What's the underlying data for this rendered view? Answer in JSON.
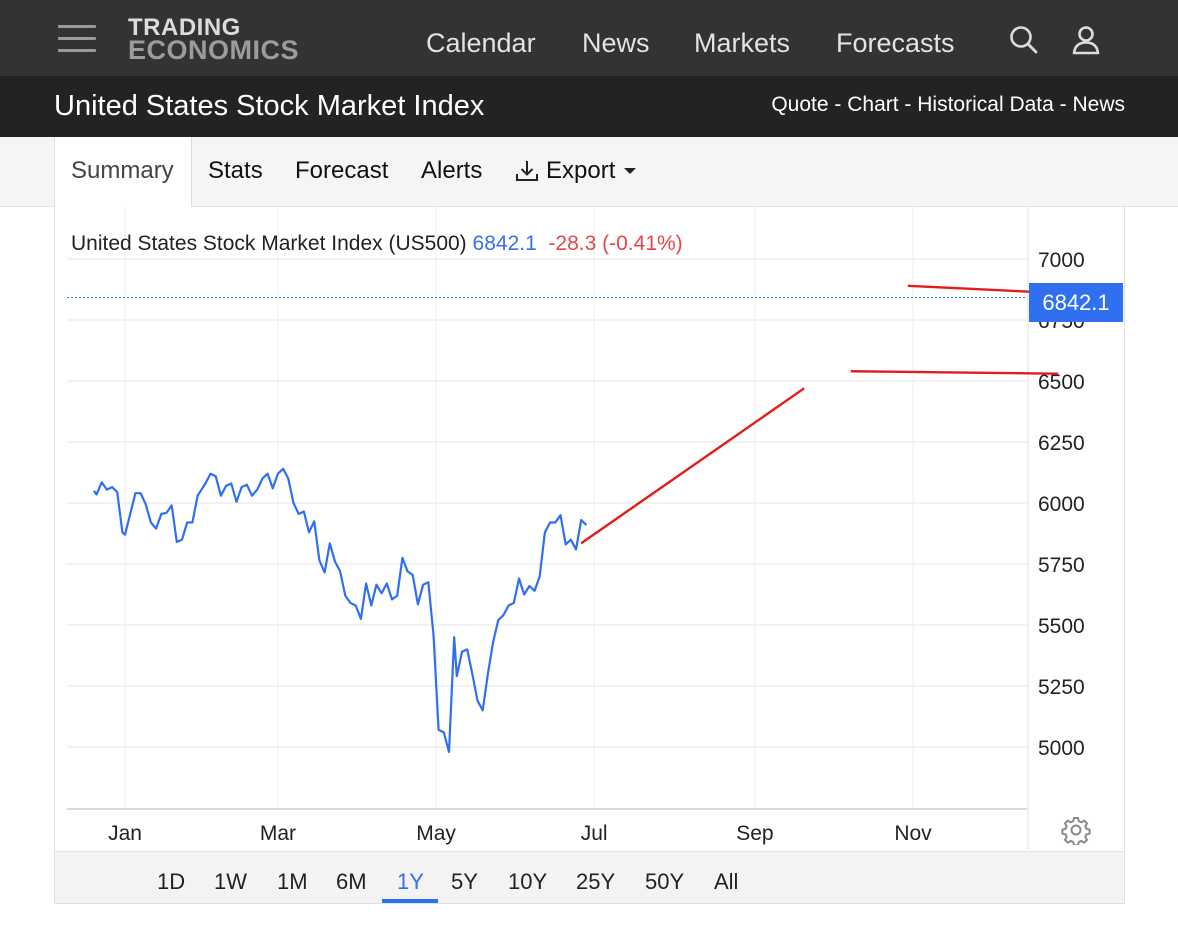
{
  "header": {
    "logo_line1": "TRADING",
    "logo_line2": "ECONOMICS",
    "nav": [
      "Calendar",
      "News",
      "Markets",
      "Forecasts"
    ],
    "icons": [
      "menu-icon",
      "search-icon",
      "user-icon"
    ]
  },
  "titlebar": {
    "title": "United States Stock Market Index",
    "links": [
      "Quote",
      "Chart",
      "Historical Data",
      "News"
    ],
    "separator": " - "
  },
  "tabs": {
    "active": "Summary",
    "items": [
      "Stats",
      "Forecast",
      "Alerts"
    ],
    "export_label": "Export"
  },
  "legend": {
    "name": "United States Stock Market Index (US500)",
    "value": "6842.1",
    "change": "-28.3 (-0.41%)"
  },
  "price_tag": "6842.1",
  "ranges": [
    "1D",
    "1W",
    "1M",
    "6M",
    "1Y",
    "5Y",
    "10Y",
    "25Y",
    "50Y",
    "All"
  ],
  "active_range": "1Y",
  "colors": {
    "line": "#2f6ff0",
    "trendline": "#e31c1c",
    "negative": "#e4474b",
    "accent": "#2f6ff0"
  },
  "chart_data": {
    "type": "line",
    "ylim": [
      4750,
      7250
    ],
    "yticks": [
      5000,
      5250,
      5500,
      5750,
      6000,
      6250,
      6500,
      6750,
      7000
    ],
    "ytick_labels": [
      "5000",
      "5250",
      "5500",
      "5750",
      "6000",
      "6250",
      "6500",
      "6750",
      "7000"
    ],
    "xlim": [
      "2024-12-20",
      "2025-12-19"
    ],
    "xticks": [
      "2025-01-01",
      "2025-03-01",
      "2025-05-01",
      "2025-07-01",
      "2025-09-01",
      "2025-11-01"
    ],
    "xtick_labels": [
      "Jan",
      "Mar",
      "May",
      "Jul",
      "Sep",
      "Nov"
    ],
    "last_value": 6842.1,
    "series": [
      {
        "values": [
          [
            "2024-12-20",
            6050
          ],
          [
            "2024-12-21",
            6035
          ],
          [
            "2024-12-23",
            6085
          ],
          [
            "2024-12-25",
            6055
          ],
          [
            "2024-12-27",
            6065
          ],
          [
            "2024-12-29",
            6045
          ],
          [
            "2024-12-31",
            5880
          ],
          [
            "2025-01-01",
            5870
          ],
          [
            "2025-01-03",
            5955
          ],
          [
            "2025-01-05",
            6040
          ],
          [
            "2025-01-07",
            6040
          ],
          [
            "2025-01-09",
            5995
          ],
          [
            "2025-01-11",
            5920
          ],
          [
            "2025-01-13",
            5895
          ],
          [
            "2025-01-15",
            5955
          ],
          [
            "2025-01-17",
            5960
          ],
          [
            "2025-01-19",
            5990
          ],
          [
            "2025-01-21",
            5840
          ],
          [
            "2025-01-23",
            5850
          ],
          [
            "2025-01-25",
            5920
          ],
          [
            "2025-01-27",
            5920
          ],
          [
            "2025-01-29",
            6030
          ],
          [
            "2025-02-01",
            6080
          ],
          [
            "2025-02-03",
            6120
          ],
          [
            "2025-02-05",
            6110
          ],
          [
            "2025-02-07",
            6030
          ],
          [
            "2025-02-09",
            6070
          ],
          [
            "2025-02-11",
            6080
          ],
          [
            "2025-02-13",
            6005
          ],
          [
            "2025-02-15",
            6065
          ],
          [
            "2025-02-17",
            6075
          ],
          [
            "2025-02-19",
            6030
          ],
          [
            "2025-02-21",
            6055
          ],
          [
            "2025-02-23",
            6100
          ],
          [
            "2025-02-25",
            6120
          ],
          [
            "2025-02-27",
            6060
          ],
          [
            "2025-03-01",
            6120
          ],
          [
            "2025-03-03",
            6140
          ],
          [
            "2025-03-05",
            6100
          ],
          [
            "2025-03-07",
            6000
          ],
          [
            "2025-03-09",
            5955
          ],
          [
            "2025-03-11",
            5965
          ],
          [
            "2025-03-13",
            5880
          ],
          [
            "2025-03-15",
            5925
          ],
          [
            "2025-03-17",
            5765
          ],
          [
            "2025-03-19",
            5715
          ],
          [
            "2025-03-21",
            5835
          ],
          [
            "2025-03-23",
            5760
          ],
          [
            "2025-03-25",
            5720
          ],
          [
            "2025-03-27",
            5620
          ],
          [
            "2025-03-29",
            5590
          ],
          [
            "2025-03-31",
            5580
          ],
          [
            "2025-04-02",
            5525
          ],
          [
            "2025-04-04",
            5670
          ],
          [
            "2025-04-06",
            5580
          ],
          [
            "2025-04-08",
            5665
          ],
          [
            "2025-04-10",
            5630
          ],
          [
            "2025-04-12",
            5670
          ],
          [
            "2025-04-14",
            5605
          ],
          [
            "2025-04-16",
            5620
          ],
          [
            "2025-04-18",
            5775
          ],
          [
            "2025-04-20",
            5720
          ],
          [
            "2025-04-22",
            5705
          ],
          [
            "2025-04-24",
            5585
          ],
          [
            "2025-04-26",
            5665
          ],
          [
            "2025-04-28",
            5675
          ],
          [
            "2025-04-30",
            5460
          ],
          [
            "2025-05-02",
            5070
          ],
          [
            "2025-05-04",
            5060
          ],
          [
            "2025-05-06",
            4980
          ],
          [
            "2025-05-08",
            5450
          ],
          [
            "2025-05-09",
            5290
          ],
          [
            "2025-05-11",
            5390
          ],
          [
            "2025-05-13",
            5400
          ],
          [
            "2025-05-15",
            5300
          ],
          [
            "2025-05-17",
            5190
          ],
          [
            "2025-05-19",
            5150
          ],
          [
            "2025-05-21",
            5300
          ],
          [
            "2025-05-23",
            5430
          ],
          [
            "2025-05-25",
            5520
          ],
          [
            "2025-05-27",
            5540
          ],
          [
            "2025-05-29",
            5580
          ],
          [
            "2025-05-31",
            5590
          ],
          [
            "2025-06-02",
            5690
          ],
          [
            "2025-06-04",
            5625
          ],
          [
            "2025-06-06",
            5660
          ],
          [
            "2025-06-08",
            5640
          ],
          [
            "2025-06-10",
            5700
          ],
          [
            "2025-06-12",
            5880
          ],
          [
            "2025-06-14",
            5920
          ],
          [
            "2025-06-16",
            5920
          ],
          [
            "2025-06-18",
            5950
          ],
          [
            "2025-06-20",
            5830
          ],
          [
            "2025-06-22",
            5850
          ],
          [
            "2025-06-24",
            5810
          ],
          [
            "2025-06-26",
            5930
          ],
          [
            "2025-06-28",
            5910
          ]
        ]
      }
    ],
    "trendlines": [
      {
        "from": [
          "2025-06-26",
          5835
        ],
        "to": [
          "2025-09-20",
          6470
        ]
      },
      {
        "from": [
          "2025-10-08",
          6540
        ],
        "to": [
          "2025-12-27",
          6530
        ]
      },
      {
        "from": [
          "2025-10-30",
          6890
        ],
        "to": [
          "2025-12-28",
          6860
        ]
      }
    ]
  }
}
